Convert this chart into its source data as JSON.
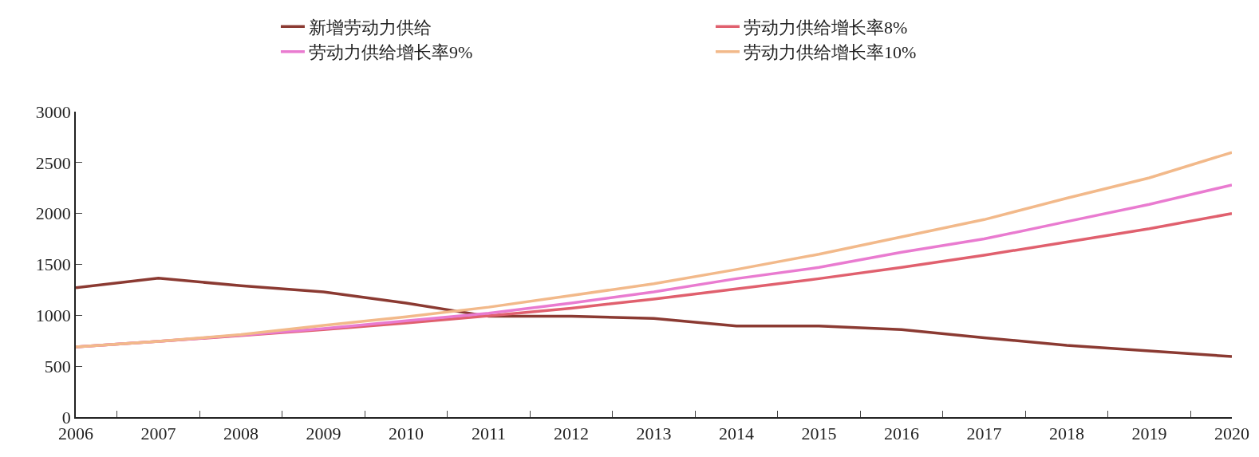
{
  "chart_data": {
    "type": "line",
    "categories": [
      "2006",
      "2007",
      "2008",
      "2009",
      "2010",
      "2011",
      "2012",
      "2013",
      "2014",
      "2015",
      "2016",
      "2017",
      "2018",
      "2019",
      "2020"
    ],
    "series": [
      {
        "name": "新增劳动力供给",
        "color": "#8b3a32",
        "values": [
          1270,
          1365,
          1290,
          1230,
          1120,
          990,
          990,
          970,
          895,
          895,
          860,
          780,
          705,
          650,
          595
        ]
      },
      {
        "name": "劳动力供给增长率8%",
        "color": "#e0606e",
        "values": [
          690,
          745,
          800,
          860,
          925,
          995,
          1070,
          1160,
          1260,
          1360,
          1470,
          1590,
          1720,
          1850,
          2000
        ]
      },
      {
        "name": "劳动力供给增长率9%",
        "color": "#e97bd0",
        "values": [
          690,
          745,
          805,
          870,
          945,
          1020,
          1120,
          1230,
          1360,
          1470,
          1620,
          1750,
          1920,
          2090,
          2280
        ]
      },
      {
        "name": "劳动力供给增长率10%",
        "color": "#f2b98a",
        "values": [
          690,
          745,
          810,
          900,
          985,
          1080,
          1195,
          1310,
          1450,
          1600,
          1770,
          1940,
          2150,
          2350,
          2600
        ]
      }
    ],
    "ylim": [
      0,
      3000
    ],
    "yticks": [
      0,
      500,
      1000,
      1500,
      2000,
      2500,
      3000
    ],
    "grid": false,
    "legend": "top",
    "marker": "none",
    "line_style": "solid"
  }
}
